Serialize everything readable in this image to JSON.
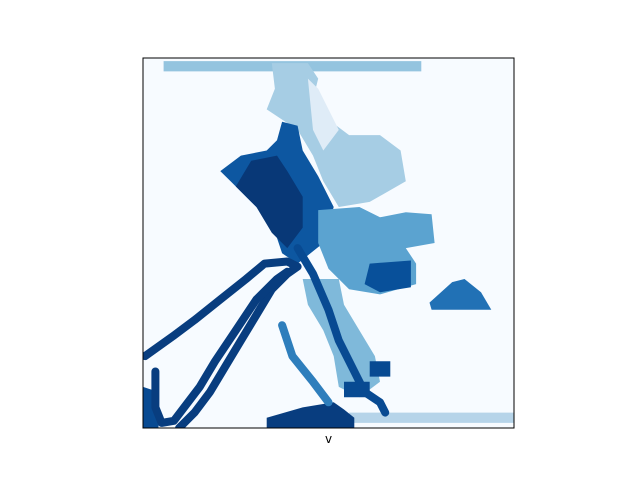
{
  "chart_data": {
    "type": "heatmap",
    "title": "",
    "xlabel": "v",
    "ylabel": "",
    "xticks": [],
    "yticks": [],
    "colormap": "Blues",
    "grid": false,
    "colorbar": false,
    "background_color": "#f7fbff",
    "frame_color": "#000000",
    "rows": 36,
    "cols": 36,
    "regions": [
      {
        "name": "top-strip",
        "level": 0.4,
        "poly": [
          [
            2,
            0.3
          ],
          [
            27,
            0.3
          ],
          [
            27,
            1.3
          ],
          [
            2,
            1.3
          ]
        ]
      },
      {
        "name": "right-bottom-strip",
        "level": 0.3,
        "poly": [
          [
            20,
            34.5
          ],
          [
            36,
            34.5
          ],
          [
            36,
            35.5
          ],
          [
            20,
            35.5
          ]
        ]
      },
      {
        "name": "upper-wisp",
        "level": 0.35,
        "poly": [
          [
            12.5,
            0.5
          ],
          [
            16,
            0.5
          ],
          [
            17,
            2
          ],
          [
            16.5,
            4
          ],
          [
            18,
            6
          ],
          [
            20,
            7.5
          ],
          [
            23,
            7.5
          ],
          [
            25,
            9
          ],
          [
            25.5,
            12
          ],
          [
            22,
            14
          ],
          [
            19,
            14.5
          ],
          [
            17.5,
            12
          ],
          [
            16.5,
            9.5
          ],
          [
            15,
            7
          ],
          [
            12,
            5
          ],
          [
            12.8,
            3
          ]
        ]
      },
      {
        "name": "upper-wisp-core",
        "level": 0.12,
        "poly": [
          [
            16,
            2
          ],
          [
            17,
            3
          ],
          [
            18,
            5
          ],
          [
            19,
            7
          ],
          [
            17.5,
            9
          ],
          [
            16.5,
            7
          ]
        ]
      },
      {
        "name": "center-mass",
        "level": 0.85,
        "poly": [
          [
            13.5,
            6.2
          ],
          [
            15,
            6.6
          ],
          [
            15.5,
            9
          ],
          [
            17,
            11.5
          ],
          [
            18.5,
            14.5
          ],
          [
            17.5,
            18
          ],
          [
            15,
            20
          ],
          [
            13.5,
            19
          ],
          [
            12.5,
            16
          ],
          [
            10.5,
            14
          ],
          [
            8.5,
            12
          ],
          [
            7.5,
            11
          ],
          [
            9.5,
            9.5
          ],
          [
            12,
            9
          ],
          [
            13,
            8
          ]
        ]
      },
      {
        "name": "center-dark",
        "level": 0.97,
        "poly": [
          [
            10.5,
            10
          ],
          [
            13,
            9.5
          ],
          [
            14,
            11
          ],
          [
            15.5,
            13.5
          ],
          [
            15.5,
            16.5
          ],
          [
            14,
            18.5
          ],
          [
            12.5,
            17
          ],
          [
            11,
            14.5
          ],
          [
            9,
            12.5
          ]
        ]
      },
      {
        "name": "right-wing",
        "level": 0.55,
        "poly": [
          [
            17,
            14.8
          ],
          [
            21,
            14.5
          ],
          [
            23,
            15.5
          ],
          [
            25.5,
            15
          ],
          [
            28,
            15.2
          ],
          [
            28.3,
            18
          ],
          [
            25.5,
            18.5
          ],
          [
            26.5,
            20
          ],
          [
            26.5,
            22
          ],
          [
            23,
            23
          ],
          [
            20,
            22.5
          ],
          [
            18,
            20.5
          ],
          [
            17,
            18
          ]
        ]
      },
      {
        "name": "right-wing-dark",
        "level": 0.88,
        "poly": [
          [
            22,
            20
          ],
          [
            26,
            19.7
          ],
          [
            26,
            22.3
          ],
          [
            23,
            22.8
          ],
          [
            21.5,
            22
          ]
        ]
      },
      {
        "name": "triangle",
        "level": 0.75,
        "poly": [
          [
            27.8,
            23.8
          ],
          [
            30,
            21.8
          ],
          [
            31.2,
            21.5
          ],
          [
            32.8,
            22.8
          ],
          [
            33.8,
            24.5
          ],
          [
            28,
            24.5
          ]
        ]
      },
      {
        "name": "lower-blob",
        "level": 0.45,
        "poly": [
          [
            15.5,
            21.5
          ],
          [
            19,
            21.5
          ],
          [
            19.5,
            24
          ],
          [
            21,
            26.5
          ],
          [
            22.5,
            29
          ],
          [
            23,
            31.5
          ],
          [
            21,
            33
          ],
          [
            19,
            32
          ],
          [
            18.5,
            29
          ],
          [
            17.5,
            26.5
          ],
          [
            16,
            24
          ]
        ]
      },
      {
        "name": "lower-dark-1",
        "level": 0.9,
        "poly": [
          [
            22,
            29.5
          ],
          [
            24,
            29.5
          ],
          [
            24,
            31
          ],
          [
            22,
            31
          ]
        ]
      },
      {
        "name": "lower-dark-2",
        "level": 0.9,
        "poly": [
          [
            19.5,
            31.5
          ],
          [
            22,
            31.5
          ],
          [
            22,
            33
          ],
          [
            19.5,
            33
          ]
        ]
      },
      {
        "name": "bottom-blob",
        "level": 0.95,
        "poly": [
          [
            15.5,
            34
          ],
          [
            18.5,
            33.5
          ],
          [
            19.5,
            34.2
          ],
          [
            20.5,
            35
          ],
          [
            20.5,
            36
          ],
          [
            12,
            36
          ],
          [
            12,
            35
          ]
        ]
      },
      {
        "name": "left-edge-blob",
        "level": 0.9,
        "poly": [
          [
            0,
            32
          ],
          [
            1.5,
            32.5
          ],
          [
            1.5,
            36
          ],
          [
            0,
            36
          ]
        ]
      }
    ],
    "contours": [
      {
        "name": "left-band-outer",
        "level": 0.95,
        "points": [
          [
            0.2,
            29
          ],
          [
            3,
            27
          ],
          [
            5,
            25.5
          ],
          [
            7.5,
            23.5
          ],
          [
            10,
            21.5
          ],
          [
            11.8,
            20
          ],
          [
            14,
            19.8
          ],
          [
            15,
            20.3
          ],
          [
            14,
            21
          ],
          [
            12.5,
            22.5
          ],
          [
            11,
            25
          ],
          [
            9.5,
            27.5
          ],
          [
            8,
            30
          ],
          [
            6.5,
            32.5
          ],
          [
            5,
            34.5
          ],
          [
            3.5,
            36
          ]
        ]
      },
      {
        "name": "left-band-inner",
        "level": 0.95,
        "points": [
          [
            1.2,
            30.5
          ],
          [
            1.2,
            34
          ],
          [
            1.8,
            35.5
          ],
          [
            3,
            35.3
          ],
          [
            5.5,
            32
          ],
          [
            7,
            29.5
          ],
          [
            9,
            26.5
          ],
          [
            11,
            23.5
          ],
          [
            13,
            21.5
          ],
          [
            14,
            20.8
          ]
        ]
      },
      {
        "name": "diag-line",
        "level": 0.9,
        "points": [
          [
            15,
            18.5
          ],
          [
            16.5,
            21
          ],
          [
            18,
            24.5
          ],
          [
            19,
            27.5
          ],
          [
            20.5,
            30.5
          ],
          [
            21.5,
            32.5
          ],
          [
            23,
            33.5
          ],
          [
            23.5,
            34.5
          ]
        ]
      },
      {
        "name": "edge-line",
        "level": 0.7,
        "points": [
          [
            13.5,
            26
          ],
          [
            14.5,
            29
          ],
          [
            16.5,
            31.5
          ],
          [
            18,
            33.5
          ]
        ]
      }
    ]
  }
}
